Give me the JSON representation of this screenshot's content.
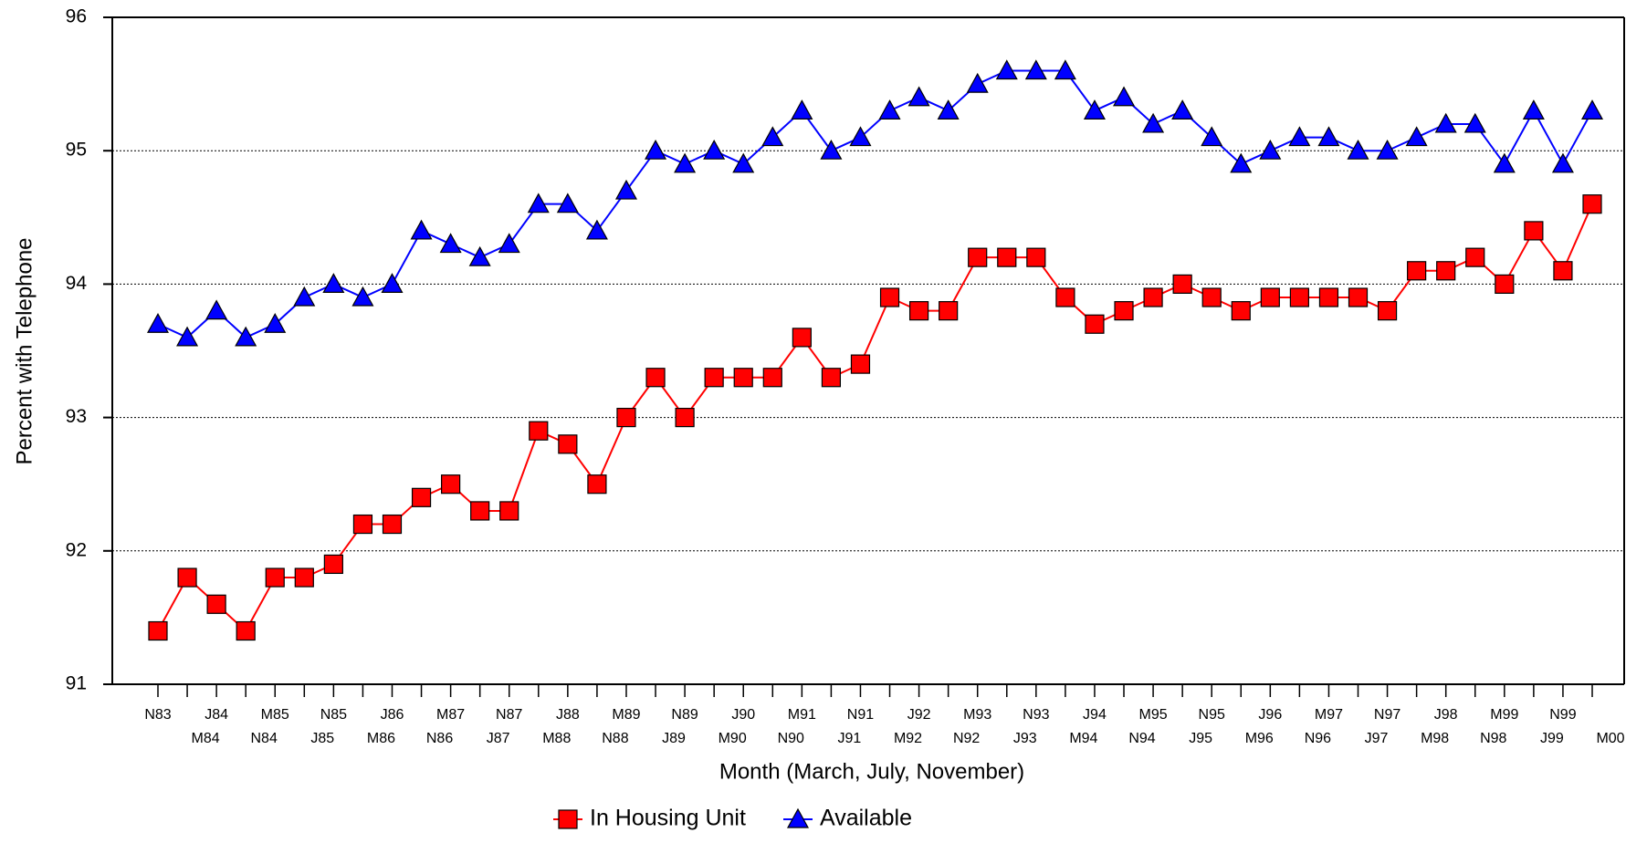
{
  "chart_data": {
    "type": "line",
    "y_label": "Percent with Telephone",
    "x_label": "Month (March, July, November)",
    "categories": [
      "N83",
      "M84",
      "J84",
      "N84",
      "M85",
      "J85",
      "N85",
      "M86",
      "J86",
      "N86",
      "M87",
      "J87",
      "N87",
      "M88",
      "J88",
      "N88",
      "M89",
      "J89",
      "N89",
      "M90",
      "J90",
      "N90",
      "M91",
      "J91",
      "N91",
      "M92",
      "J92",
      "N92",
      "M93",
      "J93",
      "N93",
      "M94",
      "J94",
      "N94",
      "M95",
      "J95",
      "N95",
      "M96",
      "J96",
      "N96",
      "M97",
      "J97",
      "N97",
      "M98",
      "J98",
      "N98",
      "M99",
      "J99",
      "N99",
      "M00"
    ],
    "series": [
      {
        "name": "In Housing Unit",
        "color": "#ff0000",
        "marker": "square",
        "values": [
          91.4,
          91.8,
          91.6,
          91.4,
          91.8,
          91.8,
          91.9,
          92.2,
          92.2,
          92.4,
          92.5,
          92.3,
          92.3,
          92.9,
          92.8,
          92.5,
          93.0,
          93.3,
          93.0,
          93.3,
          93.3,
          93.3,
          93.6,
          93.3,
          93.4,
          93.9,
          93.8,
          93.8,
          94.2,
          94.2,
          94.2,
          93.9,
          93.7,
          93.8,
          93.9,
          94.0,
          93.9,
          93.8,
          93.9,
          93.9,
          93.9,
          93.9,
          93.8,
          94.1,
          94.1,
          94.2,
          94.0,
          94.4,
          94.1,
          94.6
        ]
      },
      {
        "name": "Available",
        "color": "#0000ff",
        "marker": "triangle",
        "values": [
          93.7,
          93.6,
          93.8,
          93.6,
          93.7,
          93.9,
          94.0,
          93.9,
          94.0,
          94.4,
          94.3,
          94.2,
          94.3,
          94.6,
          94.6,
          94.4,
          94.7,
          95.0,
          94.9,
          95.0,
          94.9,
          95.1,
          95.3,
          95.0,
          95.1,
          95.3,
          95.4,
          95.3,
          95.5,
          95.6,
          95.6,
          95.6,
          95.3,
          95.4,
          95.2,
          95.3,
          95.1,
          94.9,
          95.0,
          95.1,
          95.1,
          95.0,
          95.0,
          95.1,
          95.2,
          95.2,
          94.9,
          95.3,
          94.9,
          95.3
        ]
      }
    ],
    "ylim": [
      91,
      96
    ],
    "yticks": [
      91,
      92,
      93,
      94,
      95,
      96
    ],
    "grid": true,
    "legend": "bottom"
  }
}
